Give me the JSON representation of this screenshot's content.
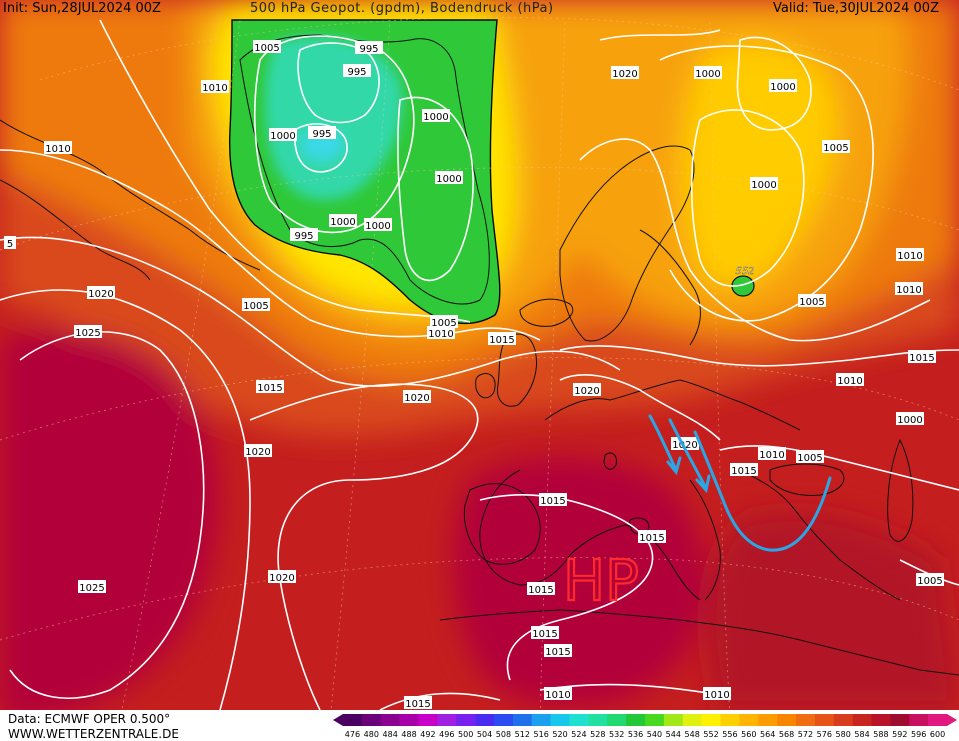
{
  "header": {
    "init": "Init: Sun,28JUL2024 00Z",
    "title": "500 hPa Geopot. (gpdm), Bodendruck (hPa)",
    "valid": "Valid: Tue,30JUL2024 00Z"
  },
  "footer": {
    "data_line": "Data: ECMWF OPER 0.500°",
    "site": "WWW.WETTERZENTRALE.DE"
  },
  "colors": {
    "deep_red": "#b2003a",
    "red": "#c41e1e",
    "dark_orange": "#d9481c",
    "orange": "#ee7a10",
    "light_orange": "#f7a10c",
    "yellow": "#ffe600",
    "green": "#2fc838",
    "teal": "#33d8a8",
    "cyan": "#3ad8e6",
    "isobar": "#ffffff",
    "coast": "#111111",
    "annotation_red": "#ff2a2a",
    "annotation_blue": "#2aa6e6"
  },
  "legend": {
    "labels": [
      "476",
      "480",
      "484",
      "488",
      "492",
      "496",
      "500",
      "504",
      "508",
      "512",
      "516",
      "520",
      "524",
      "528",
      "532",
      "536",
      "540",
      "544",
      "548",
      "552",
      "556",
      "560",
      "564",
      "568",
      "572",
      "576",
      "580",
      "584",
      "588",
      "592",
      "596",
      "600"
    ],
    "colors": [
      "#4a0060",
      "#6a007a",
      "#8a0090",
      "#a800a8",
      "#c800c8",
      "#a020e0",
      "#7820f0",
      "#4a2cf0",
      "#2a4cf0",
      "#2070ec",
      "#1aa0ec",
      "#18c8ec",
      "#20e0d0",
      "#22e0a0",
      "#22d870",
      "#22c838",
      "#48d820",
      "#a0e818",
      "#e0f010",
      "#fff000",
      "#ffd000",
      "#ffb400",
      "#ff9c00",
      "#f88400",
      "#f06c10",
      "#e85418",
      "#d83c1c",
      "#c82420",
      "#b81428",
      "#a00c30",
      "#c81060",
      "#e01880"
    ]
  },
  "isobar_labels": [
    "1005",
    "995",
    "1010",
    "995",
    "1000",
    "995",
    "1000",
    "1000",
    "1000",
    "995",
    "1000",
    "1010",
    "1005",
    "1020",
    "1000",
    "1000",
    "1005",
    "1000",
    "1010",
    "1020",
    "552",
    "1005",
    "1025",
    "1005",
    "1010",
    "1015",
    "1015",
    "1020",
    "1010",
    "1020",
    "1010",
    "1000",
    "1020",
    "1020",
    "1015",
    "1010",
    "1005",
    "1015",
    "1015",
    "1015",
    "1020",
    "1025",
    "1015",
    "1015",
    "1015",
    "1005",
    "1010",
    "1010",
    "1015",
    "5"
  ],
  "annotations": {
    "high_label": "HP"
  }
}
